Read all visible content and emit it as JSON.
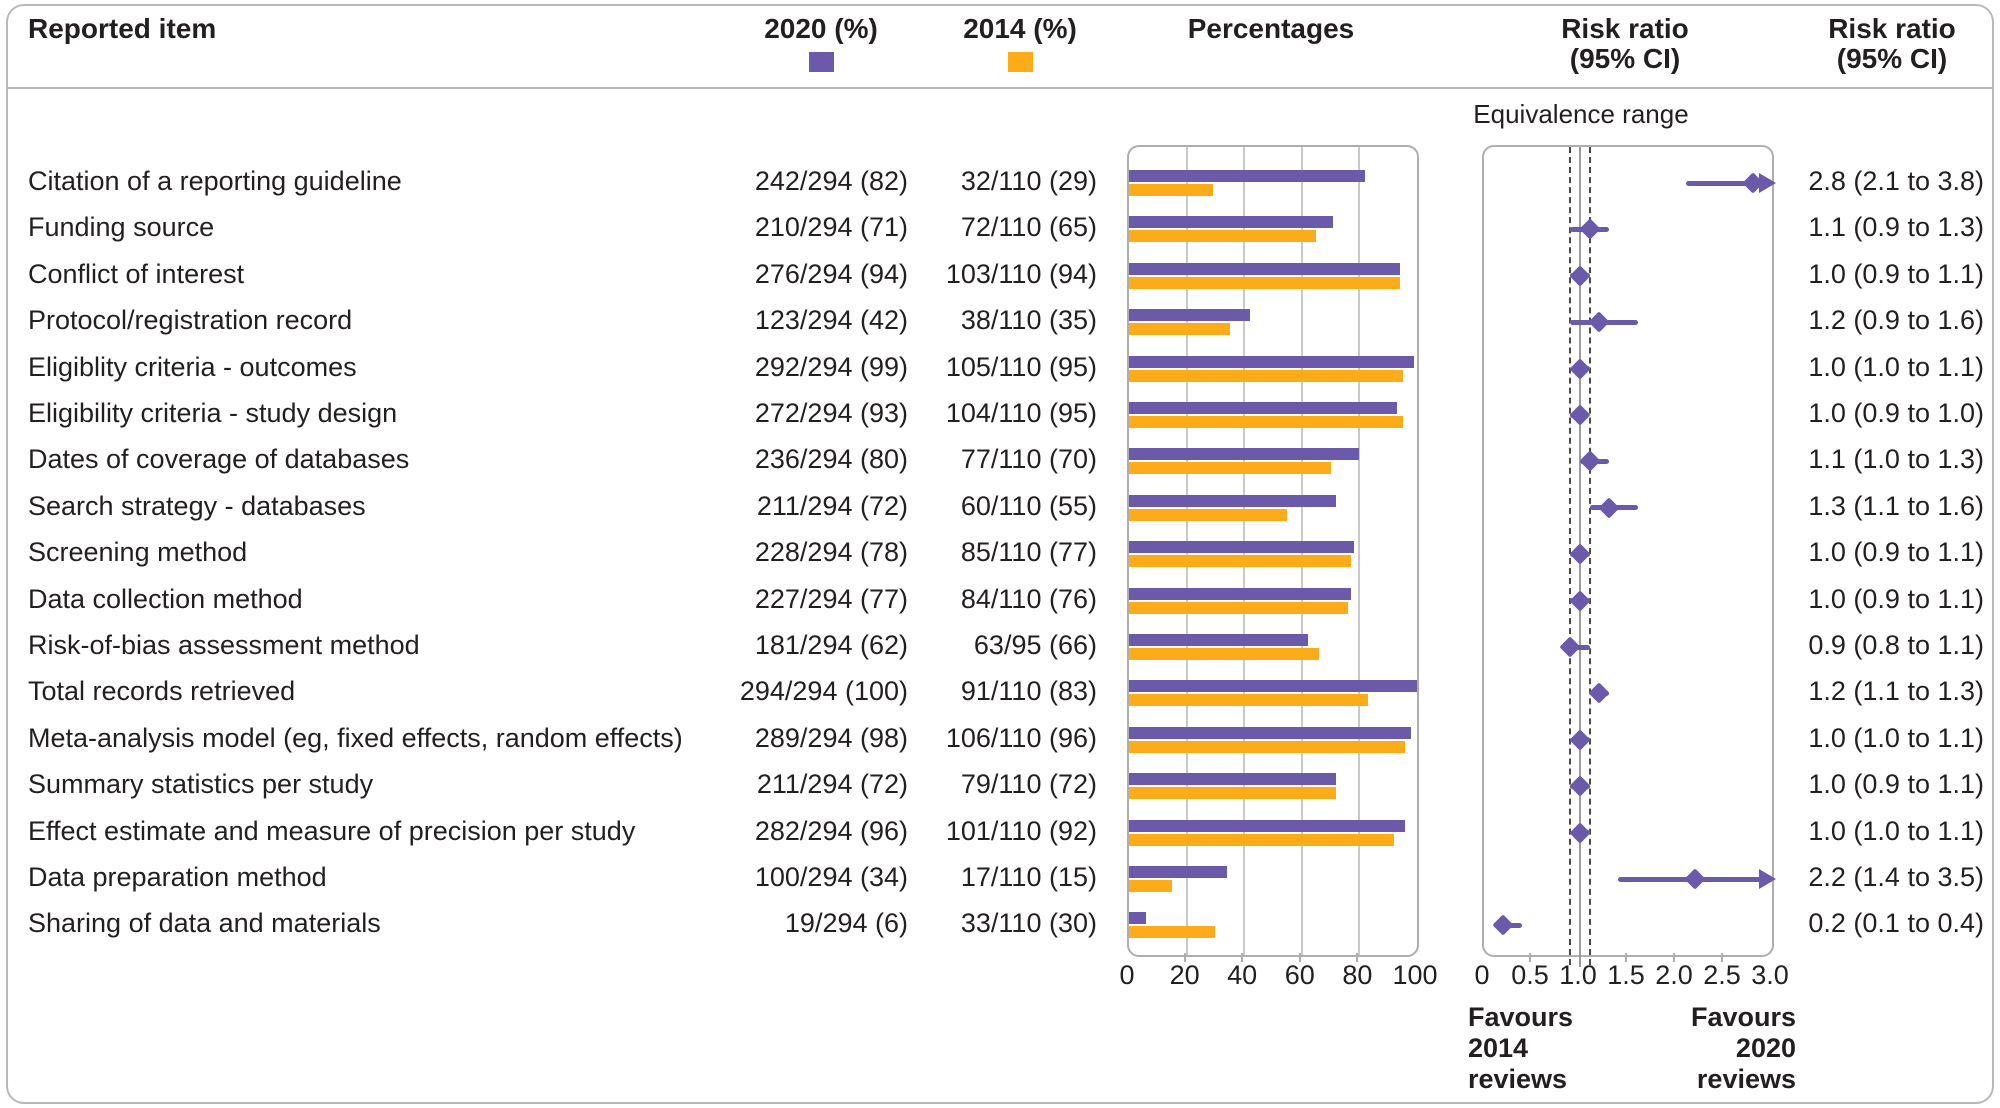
{
  "colors": {
    "purple": "#6b59a9",
    "orange": "#fbac18",
    "text": "#231f20",
    "panel_border": "#aeaeb1",
    "outer_border": "#b9b9bc",
    "gridline": "#c9c9cc",
    "reference_line": "#9a9aa0",
    "equivalence_dash": "#4a4a4a"
  },
  "header": {
    "reported_item": "Reported item",
    "col_2020": "2020 (%)",
    "col_2014": "2014 (%)",
    "percentages": "Percentages",
    "risk_ratio_line1": "Risk ratio",
    "risk_ratio_line2": "(95% CI)"
  },
  "equivalence_label": "Equivalence range",
  "chart_data": {
    "type": "bar",
    "subtype": "paired horizontal bars + forest plot of risk ratios",
    "series": [
      {
        "name": "2020 (%)",
        "color_key": "purple"
      },
      {
        "name": "2014 (%)",
        "color_key": "orange"
      }
    ],
    "pct_axis": {
      "ticks": [
        "0",
        "20",
        "40",
        "60",
        "80",
        "100"
      ],
      "range": [
        0,
        100
      ],
      "grid": true
    },
    "rr_axis": {
      "ticks": [
        "0",
        "0.5",
        "1.0",
        "1.5",
        "2.0",
        "2.5",
        "3.0"
      ],
      "range": [
        0,
        3.0
      ],
      "reference_line": 1.0,
      "equivalence_range": [
        0.9,
        1.1
      ]
    },
    "rows": [
      {
        "label": "Citation of a reporting guideline",
        "v2020": "242/294 (82)",
        "p2020": 82,
        "v2014": "32/110 (29)",
        "p2014": 29,
        "rr": 2.8,
        "lo": 2.1,
        "hi": 3.8,
        "rr_text": "2.8 (2.1 to 3.8)"
      },
      {
        "label": "Funding source",
        "v2020": "210/294 (71)",
        "p2020": 71,
        "v2014": "72/110 (65)",
        "p2014": 65,
        "rr": 1.1,
        "lo": 0.9,
        "hi": 1.3,
        "rr_text": "1.1 (0.9 to 1.3)"
      },
      {
        "label": "Conflict of interest",
        "v2020": "276/294 (94)",
        "p2020": 94,
        "v2014": "103/110 (94)",
        "p2014": 94,
        "rr": 1.0,
        "lo": 0.9,
        "hi": 1.1,
        "rr_text": "1.0 (0.9 to 1.1)"
      },
      {
        "label": "Protocol/registration record",
        "v2020": "123/294 (42)",
        "p2020": 42,
        "v2014": "38/110 (35)",
        "p2014": 35,
        "rr": 1.2,
        "lo": 0.9,
        "hi": 1.6,
        "rr_text": "1.2 (0.9 to 1.6)"
      },
      {
        "label": "Eligiblity criteria - outcomes",
        "v2020": "292/294 (99)",
        "p2020": 99,
        "v2014": "105/110 (95)",
        "p2014": 95,
        "rr": 1.0,
        "lo": 1.0,
        "hi": 1.1,
        "rr_text": "1.0 (1.0 to 1.1)"
      },
      {
        "label": "Eligibility criteria - study design",
        "v2020": "272/294 (93)",
        "p2020": 93,
        "v2014": "104/110 (95)",
        "p2014": 95,
        "rr": 1.0,
        "lo": 0.9,
        "hi": 1.0,
        "rr_text": "1.0 (0.9 to 1.0)"
      },
      {
        "label": "Dates of coverage of databases",
        "v2020": "236/294 (80)",
        "p2020": 80,
        "v2014": "77/110 (70)",
        "p2014": 70,
        "rr": 1.1,
        "lo": 1.0,
        "hi": 1.3,
        "rr_text": "1.1 (1.0 to 1.3)"
      },
      {
        "label": "Search strategy - databases",
        "v2020": "211/294 (72)",
        "p2020": 72,
        "v2014": "60/110 (55)",
        "p2014": 55,
        "rr": 1.3,
        "lo": 1.1,
        "hi": 1.6,
        "rr_text": "1.3 (1.1 to 1.6)"
      },
      {
        "label": "Screening method",
        "v2020": "228/294 (78)",
        "p2020": 78,
        "v2014": "85/110 (77)",
        "p2014": 77,
        "rr": 1.0,
        "lo": 0.9,
        "hi": 1.1,
        "rr_text": "1.0 (0.9 to 1.1)"
      },
      {
        "label": "Data collection method",
        "v2020": "227/294 (77)",
        "p2020": 77,
        "v2014": "84/110 (76)",
        "p2014": 76,
        "rr": 1.0,
        "lo": 0.9,
        "hi": 1.1,
        "rr_text": "1.0 (0.9 to 1.1)"
      },
      {
        "label": "Risk-of-bias assessment method",
        "v2020": "181/294 (62)",
        "p2020": 62,
        "v2014": "63/95 (66)",
        "p2014": 66,
        "rr": 0.9,
        "lo": 0.8,
        "hi": 1.1,
        "rr_text": "0.9 (0.8 to 1.1)"
      },
      {
        "label": "Total records retrieved",
        "v2020": "294/294 (100)",
        "p2020": 100,
        "v2014": "91/110 (83)",
        "p2014": 83,
        "rr": 1.2,
        "lo": 1.1,
        "hi": 1.3,
        "rr_text": "1.2 (1.1 to 1.3)"
      },
      {
        "label": "Meta-analysis model (eg, fixed effects, random effects)",
        "v2020": "289/294 (98)",
        "p2020": 98,
        "v2014": "106/110 (96)",
        "p2014": 96,
        "rr": 1.0,
        "lo": 1.0,
        "hi": 1.1,
        "rr_text": "1.0 (1.0 to 1.1)"
      },
      {
        "label": "Summary statistics per study",
        "v2020": "211/294 (72)",
        "p2020": 72,
        "v2014": "79/110 (72)",
        "p2014": 72,
        "rr": 1.0,
        "lo": 0.9,
        "hi": 1.1,
        "rr_text": "1.0 (0.9 to 1.1)"
      },
      {
        "label": "Effect estimate and measure of precision per study",
        "v2020": "282/294 (96)",
        "p2020": 96,
        "v2014": "101/110 (92)",
        "p2014": 92,
        "rr": 1.0,
        "lo": 1.0,
        "hi": 1.1,
        "rr_text": "1.0 (1.0 to 1.1)"
      },
      {
        "label": "Data preparation method",
        "v2020": "100/294 (34)",
        "p2020": 34,
        "v2014": "17/110 (15)",
        "p2014": 15,
        "rr": 2.2,
        "lo": 1.4,
        "hi": 3.5,
        "rr_text": "2.2 (1.4 to 3.5)"
      },
      {
        "label": "Sharing of data and materials",
        "v2020": "19/294 (6)",
        "p2020": 6,
        "v2014": "33/110 (30)",
        "p2014": 30,
        "rr": 0.2,
        "lo": 0.1,
        "hi": 0.4,
        "rr_text": "0.2 (0.1 to 0.4)"
      }
    ],
    "favours_left": "Favours\n2014\nreviews",
    "favours_right": "Favours\n2020\nreviews"
  }
}
